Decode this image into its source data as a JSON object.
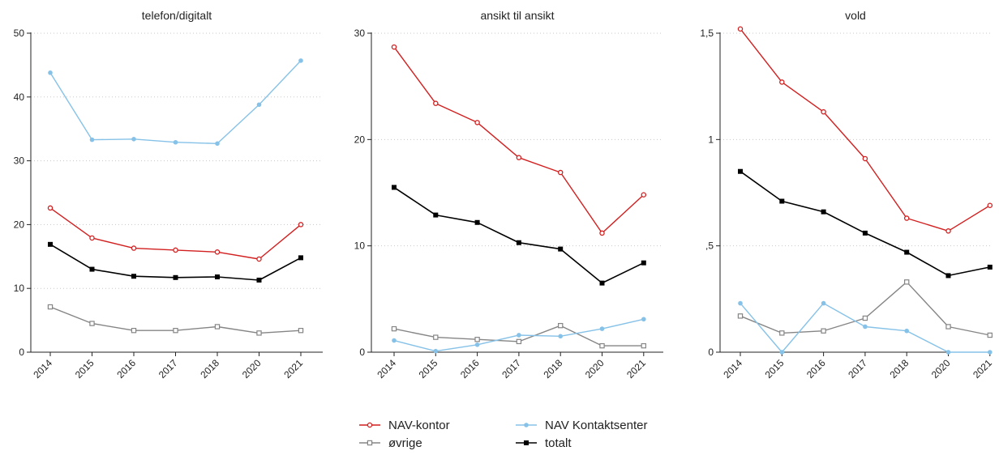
{
  "legend": [
    {
      "series": "NAV-kontor",
      "label": "NAV-kontor"
    },
    {
      "series": "NAV Kontaktsenter",
      "label": "NAV Kontaktsenter"
    },
    {
      "series": "øvrige",
      "label": "øvrige"
    },
    {
      "series": "totalt",
      "label": "totalt"
    }
  ],
  "styles": {
    "NAV-kontor": {
      "color": "#d21f1f",
      "marker": "open-circle"
    },
    "NAV Kontaktsenter": {
      "color": "#86c2e8",
      "marker": "filled-circle"
    },
    "øvrige": {
      "color": "#858585",
      "marker": "open-square"
    },
    "totalt": {
      "color": "#000000",
      "marker": "filled-square"
    }
  },
  "chart_data": [
    {
      "type": "line",
      "title": "telefon/digitalt",
      "categories": [
        "2014",
        "2015",
        "2016",
        "2017",
        "2018",
        "2020",
        "2021"
      ],
      "ylim": [
        0,
        50
      ],
      "yticks": [
        0,
        10,
        20,
        30,
        40,
        50
      ],
      "ytick_labels": [
        "0",
        "10",
        "20",
        "30",
        "40",
        "50"
      ],
      "grid": true,
      "series": [
        {
          "name": "NAV Kontaktsenter",
          "values": [
            43.8,
            33.3,
            33.4,
            32.9,
            32.7,
            38.8,
            45.7
          ]
        },
        {
          "name": "NAV-kontor",
          "values": [
            22.6,
            17.9,
            16.3,
            16.0,
            15.7,
            14.6,
            20.0
          ]
        },
        {
          "name": "totalt",
          "values": [
            16.9,
            13.0,
            11.9,
            11.7,
            11.8,
            11.3,
            14.8
          ]
        },
        {
          "name": "øvrige",
          "values": [
            7.1,
            4.5,
            3.4,
            3.4,
            4.0,
            3.0,
            3.4
          ]
        }
      ]
    },
    {
      "type": "line",
      "title": "ansikt til ansikt",
      "categories": [
        "2014",
        "2015",
        "2016",
        "2017",
        "2018",
        "2020",
        "2021"
      ],
      "ylim": [
        0,
        30
      ],
      "yticks": [
        0,
        10,
        20,
        30
      ],
      "ytick_labels": [
        "0",
        "10",
        "20",
        "30"
      ],
      "grid": true,
      "series": [
        {
          "name": "NAV-kontor",
          "values": [
            28.7,
            23.4,
            21.6,
            18.3,
            16.9,
            11.2,
            14.8
          ]
        },
        {
          "name": "totalt",
          "values": [
            15.5,
            12.9,
            12.2,
            10.3,
            9.7,
            6.5,
            8.4
          ]
        },
        {
          "name": "øvrige",
          "values": [
            2.2,
            1.4,
            1.2,
            1.0,
            2.5,
            0.6,
            0.6
          ]
        },
        {
          "name": "NAV Kontaktsenter",
          "values": [
            1.1,
            0.1,
            0.7,
            1.6,
            1.5,
            2.2,
            3.1
          ]
        }
      ]
    },
    {
      "type": "line",
      "title": "vold",
      "categories": [
        "2014",
        "2015",
        "2016",
        "2017",
        "2018",
        "2020",
        "2021"
      ],
      "ylim": [
        0,
        1.5
      ],
      "yticks": [
        0,
        0.5,
        1,
        1.5
      ],
      "ytick_labels": [
        "0",
        ",5",
        "1",
        "1,5"
      ],
      "grid": true,
      "series": [
        {
          "name": "NAV-kontor",
          "values": [
            1.52,
            1.27,
            1.13,
            0.91,
            0.63,
            0.57,
            0.69
          ]
        },
        {
          "name": "totalt",
          "values": [
            0.85,
            0.71,
            0.66,
            0.56,
            0.47,
            0.36,
            0.4
          ]
        },
        {
          "name": "øvrige",
          "values": [
            0.17,
            0.09,
            0.1,
            0.16,
            0.33,
            0.12,
            0.08
          ]
        },
        {
          "name": "NAV Kontaktsenter",
          "values": [
            0.23,
            0.0,
            0.23,
            0.12,
            0.1,
            0.0,
            0.0
          ]
        }
      ]
    }
  ]
}
